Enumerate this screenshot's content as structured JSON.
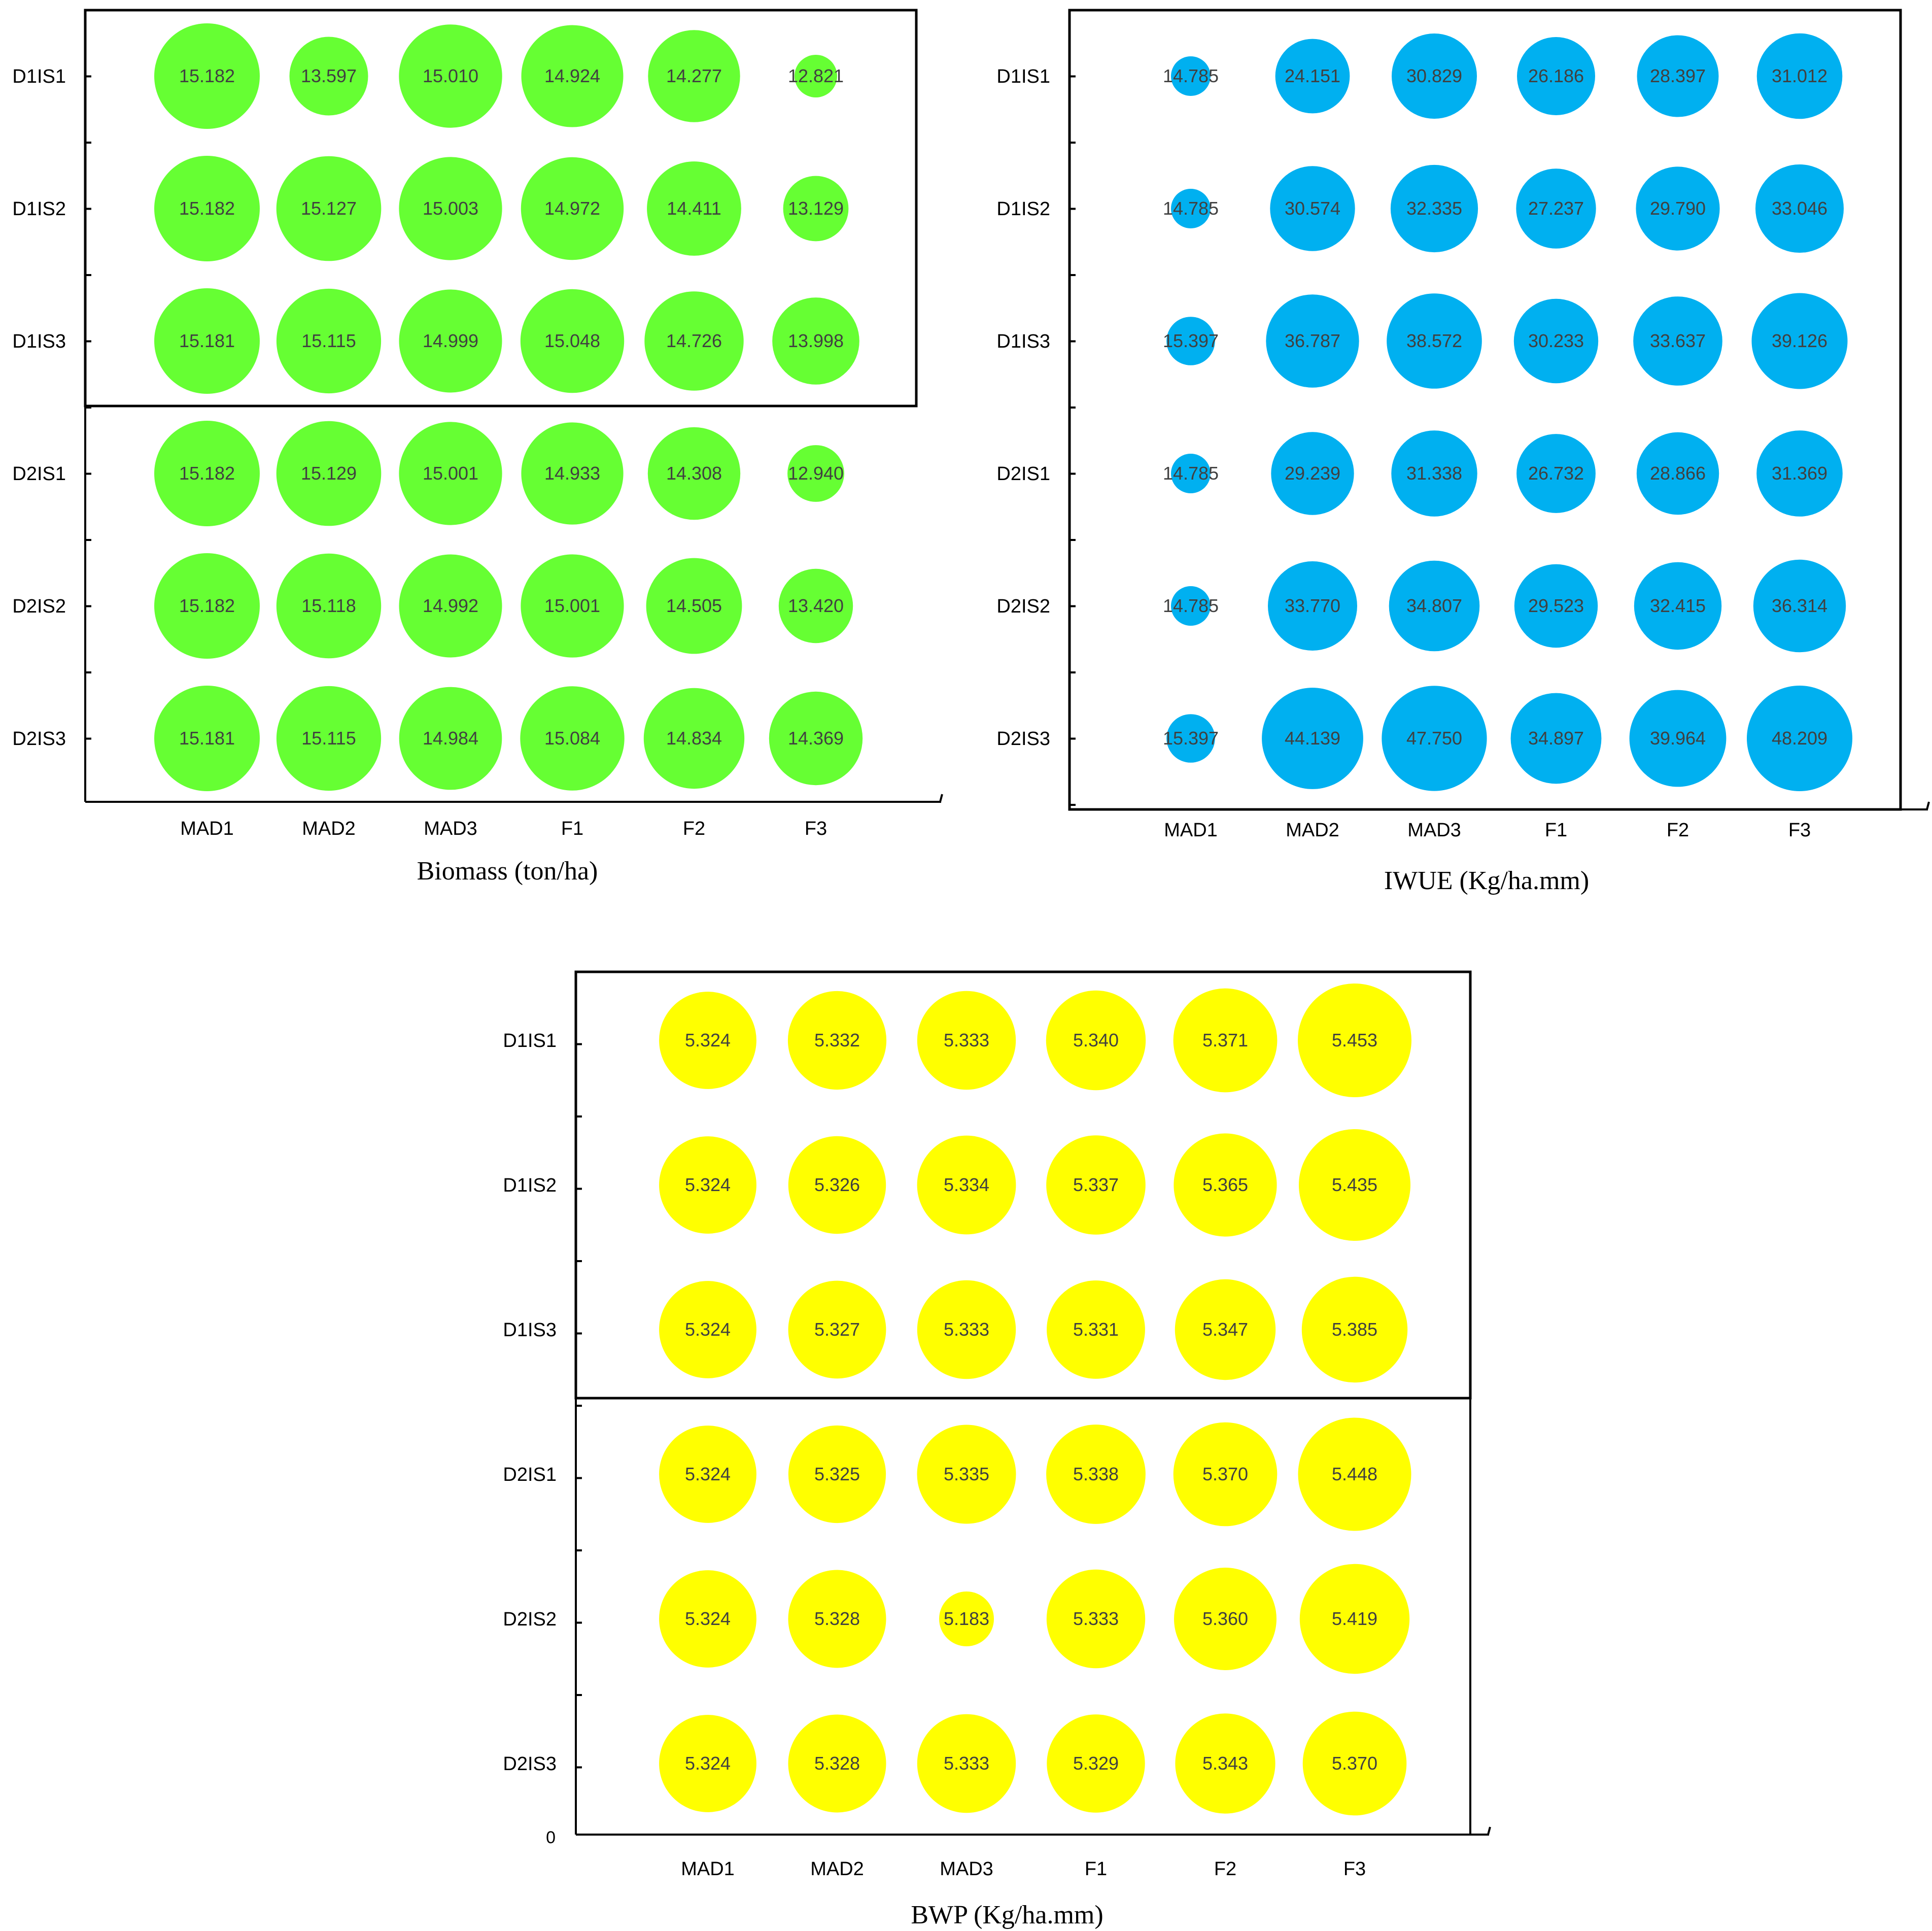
{
  "chart_data": [
    {
      "id": "biomass",
      "type": "bubble",
      "xlabel": "Biomass (ton/ha)",
      "ylabel": "",
      "title": "",
      "color": "#66ff33",
      "categories_x": [
        "MAD1",
        "MAD2",
        "MAD3",
        "F1",
        "F2",
        "F3"
      ],
      "categories_y": [
        "D1IS1",
        "D1IS2",
        "D1IS3",
        "D2IS1",
        "D2IS2",
        "D2IS3"
      ],
      "values": [
        [
          15.182,
          13.597,
          15.01,
          14.924,
          14.277,
          12.821
        ],
        [
          15.182,
          15.127,
          15.003,
          14.972,
          14.411,
          13.129
        ],
        [
          15.181,
          15.115,
          14.999,
          15.048,
          14.726,
          13.998
        ],
        [
          15.182,
          15.129,
          15.001,
          14.933,
          14.308,
          12.94
        ],
        [
          15.182,
          15.118,
          14.992,
          15.001,
          14.505,
          13.42
        ],
        [
          15.181,
          15.115,
          14.984,
          15.084,
          14.834,
          14.369
        ]
      ],
      "labels": [
        [
          "15.182",
          "13.597",
          "15.010",
          "14.924",
          "14.277",
          "12.821"
        ],
        [
          "15.182",
          "15.127",
          "15.003",
          "14.972",
          "14.411",
          "13.129"
        ],
        [
          "15.181",
          "15.115",
          "14.999",
          "15.048",
          "14.726",
          "13.998"
        ],
        [
          "15.182",
          "15.129",
          "15.001",
          "14.933",
          "14.308",
          "12.940"
        ],
        [
          "15.182",
          "15.118",
          "14.992",
          "15.001",
          "14.505",
          "13.420"
        ],
        [
          "15.181",
          "15.115",
          "14.984",
          "15.084",
          "14.834",
          "14.369"
        ]
      ],
      "origin_label": "",
      "grid": false
    },
    {
      "id": "iwue",
      "type": "bubble",
      "xlabel": "IWUE (Kg/ha.mm)",
      "ylabel": "",
      "title": "",
      "color": "#00b0f0",
      "categories_x": [
        "MAD1",
        "MAD2",
        "MAD3",
        "F1",
        "F2",
        "F3"
      ],
      "categories_y": [
        "D1IS1",
        "D1IS2",
        "D1IS3",
        "D2IS1",
        "D2IS2",
        "D2IS3"
      ],
      "values": [
        [
          14.785,
          24.151,
          30.829,
          26.186,
          28.397,
          31.012
        ],
        [
          14.785,
          30.574,
          32.335,
          27.237,
          29.79,
          33.046
        ],
        [
          15.397,
          36.787,
          38.572,
          30.233,
          33.637,
          39.126
        ],
        [
          14.785,
          29.239,
          31.338,
          26.732,
          28.866,
          31.369
        ],
        [
          14.785,
          33.77,
          34.807,
          29.523,
          32.415,
          36.314
        ],
        [
          15.397,
          44.139,
          47.75,
          34.897,
          39.964,
          48.209
        ]
      ],
      "labels": [
        [
          "14.785",
          "24.151",
          "30.829",
          "26.186",
          "28.397",
          "31.012"
        ],
        [
          "14.785",
          "30.574",
          "32.335",
          "27.237",
          "29.790",
          "33.046"
        ],
        [
          "15.397",
          "36.787",
          "38.572",
          "30.233",
          "33.637",
          "39.126"
        ],
        [
          "14.785",
          "29.239",
          "31.338",
          "26.732",
          "28.866",
          "31.369"
        ],
        [
          "14.785",
          "33.770",
          "34.807",
          "29.523",
          "32.415",
          "36.314"
        ],
        [
          "15.397",
          "44.139",
          "47.750",
          "34.897",
          "39.964",
          "48.209"
        ]
      ],
      "origin_label": "",
      "grid": false
    },
    {
      "id": "bwp",
      "type": "bubble",
      "xlabel": "BWP (Kg/ha.mm)",
      "ylabel": "",
      "title": "",
      "color": "#ffff00",
      "categories_x": [
        "MAD1",
        "MAD2",
        "MAD3",
        "F1",
        "F2",
        "F3"
      ],
      "categories_y": [
        "D1IS1",
        "D1IS2",
        "D1IS3",
        "D2IS1",
        "D2IS2",
        "D2IS3"
      ],
      "values": [
        [
          5.324,
          5.332,
          5.333,
          5.34,
          5.371,
          5.453
        ],
        [
          5.324,
          5.326,
          5.334,
          5.337,
          5.365,
          5.435
        ],
        [
          5.324,
          5.327,
          5.333,
          5.331,
          5.347,
          5.385
        ],
        [
          5.324,
          5.325,
          5.335,
          5.338,
          5.37,
          5.448
        ],
        [
          5.324,
          5.328,
          5.183,
          5.333,
          5.36,
          5.419
        ],
        [
          5.324,
          5.328,
          5.333,
          5.329,
          5.343,
          5.37
        ]
      ],
      "labels": [
        [
          "5.324",
          "5.332",
          "5.333",
          "5.340",
          "5.371",
          "5.453"
        ],
        [
          "5.324",
          "5.326",
          "5.334",
          "5.337",
          "5.365",
          "5.435"
        ],
        [
          "5.324",
          "5.327",
          "5.333",
          "5.331",
          "5.347",
          "5.385"
        ],
        [
          "5.324",
          "5.325",
          "5.335",
          "5.338",
          "5.370",
          "5.448"
        ],
        [
          "5.324",
          "5.328",
          "5.183",
          "5.333",
          "5.360",
          "5.419"
        ],
        [
          "5.324",
          "5.328",
          "5.333",
          "5.329",
          "5.343",
          "5.370"
        ]
      ],
      "origin_label": "0",
      "grid": false
    }
  ]
}
